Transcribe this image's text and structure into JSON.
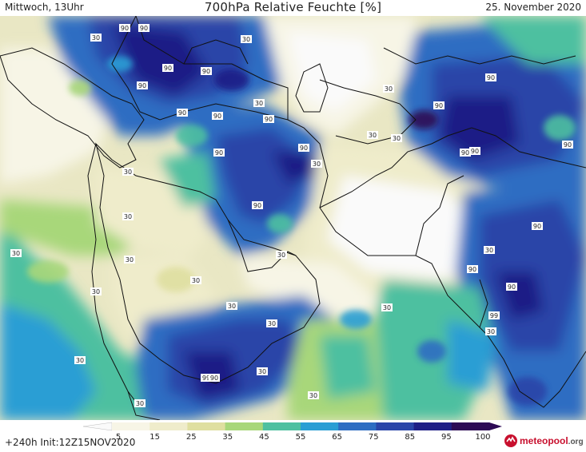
{
  "header": {
    "left": "Mittwoch, 13Uhr",
    "title": "700hPa Relative Feuchte [%]",
    "right": "25. November 2020"
  },
  "footer": {
    "run_info": "+240h  Init:12Z15NOV2020",
    "logo_text": "meteopool",
    "logo_suffix": ".org"
  },
  "colorbar": {
    "ticks": [
      "5",
      "15",
      "25",
      "35",
      "45",
      "55",
      "65",
      "75",
      "85",
      "95",
      "100"
    ]
  },
  "map_labels": [
    "90",
    "90",
    "90",
    "90",
    "90",
    "90",
    "90",
    "90",
    "90",
    "90",
    "90",
    "90",
    "90",
    "90",
    "90",
    "90",
    "90",
    "90",
    "90",
    "99",
    "99",
    "90",
    "30",
    "30",
    "30",
    "30",
    "30",
    "30",
    "30",
    "30",
    "30",
    "30",
    "30",
    "30",
    "30",
    "30",
    "30",
    "30",
    "30",
    "30",
    "30",
    "30",
    "30",
    "30",
    "30"
  ],
  "colors": {
    "rh_5": "#fafafa",
    "rh_15": "#f7f5e6",
    "rh_25": "#efeccb",
    "rh_35": "#dfdfa0",
    "rh_45": "#a8d77a",
    "rh_55": "#4ec0a0",
    "rh_65": "#2a9ed4",
    "rh_75": "#2d6dc2",
    "rh_85": "#2a45a8",
    "rh_95": "#1e1e86",
    "rh_100": "#2d0a55"
  }
}
